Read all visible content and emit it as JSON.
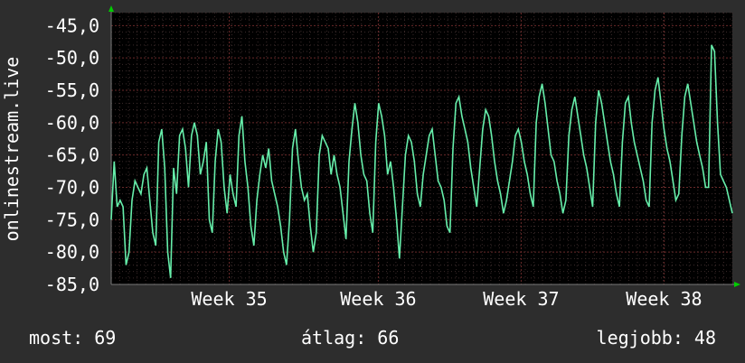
{
  "chart_data": {
    "type": "line",
    "ylabel": "onlinestream.live",
    "ylim": [
      -85,
      -43
    ],
    "y_ticks": [
      "-45,0",
      "-50,0",
      "-55,0",
      "-60,0",
      "-65,0",
      "-70,0",
      "-75,0",
      "-80,0",
      "-85,0"
    ],
    "y_tick_values": [
      -45,
      -50,
      -55,
      -60,
      -65,
      -70,
      -75,
      -80,
      -85
    ],
    "x_ticks": [
      "Week 35",
      "Week 36",
      "Week 37",
      "Week 38"
    ],
    "x_tick_values": [
      0.19,
      0.43,
      0.66,
      0.89
    ],
    "grid": true,
    "colors": {
      "background": "#2d2d2d",
      "plot": "#000000",
      "line": "#66eeaa",
      "grid_minor": "#3a2a2a",
      "grid_major": "#6a2a2a",
      "arrow": "#00cc00"
    },
    "series": [
      {
        "values": [
          -75,
          -66,
          -73,
          -72,
          -73,
          -82,
          -80,
          -72,
          -69,
          -70,
          -71,
          -68,
          -67,
          -72,
          -77,
          -79,
          -63,
          -61,
          -67,
          -80,
          -84,
          -67,
          -71,
          -62,
          -61,
          -64,
          -70,
          -62,
          -60,
          -62,
          -68,
          -66,
          -63,
          -75,
          -77,
          -66,
          -61,
          -63,
          -70,
          -74,
          -68,
          -71,
          -73,
          -62,
          -59,
          -66,
          -70,
          -76,
          -79,
          -72,
          -68,
          -65,
          -67,
          -64,
          -69,
          -71,
          -73,
          -76,
          -80,
          -82,
          -75,
          -64,
          -61,
          -66,
          -70,
          -72,
          -71,
          -76,
          -80,
          -77,
          -65,
          -62,
          -63,
          -64,
          -68,
          -65,
          -68,
          -70,
          -74,
          -78,
          -66,
          -61,
          -57,
          -60,
          -65,
          -68,
          -69,
          -74,
          -77,
          -63,
          -57,
          -59,
          -62,
          -68,
          -66,
          -70,
          -75,
          -81,
          -73,
          -65,
          -62,
          -63,
          -66,
          -71,
          -73,
          -68,
          -65,
          -62,
          -61,
          -65,
          -69,
          -70,
          -72,
          -76,
          -77,
          -64,
          -57,
          -56,
          -59,
          -61,
          -63,
          -67,
          -70,
          -73,
          -67,
          -61,
          -58,
          -59,
          -62,
          -66,
          -69,
          -71,
          -74,
          -72,
          -69,
          -66,
          -62,
          -61,
          -63,
          -66,
          -68,
          -71,
          -73,
          -60,
          -56,
          -54,
          -57,
          -61,
          -65,
          -66,
          -69,
          -71,
          -74,
          -72,
          -62,
          -58,
          -56,
          -59,
          -62,
          -65,
          -67,
          -70,
          -73,
          -60,
          -55,
          -57,
          -60,
          -63,
          -66,
          -68,
          -71,
          -73,
          -63,
          -57,
          -56,
          -60,
          -63,
          -65,
          -67,
          -69,
          -72,
          -73,
          -60,
          -55,
          -53,
          -57,
          -61,
          -64,
          -66,
          -69,
          -72,
          -71,
          -62,
          -56,
          -54,
          -57,
          -60,
          -63,
          -65,
          -67,
          -70,
          -70,
          -48,
          -49,
          -60,
          -68,
          -69,
          -70,
          -72,
          -74
        ],
        "x_start": 0.0,
        "x_end": 1.0
      }
    ]
  },
  "footer": {
    "most": "most: 69",
    "avg": "átlag: 66",
    "best": "legjobb: 48"
  }
}
